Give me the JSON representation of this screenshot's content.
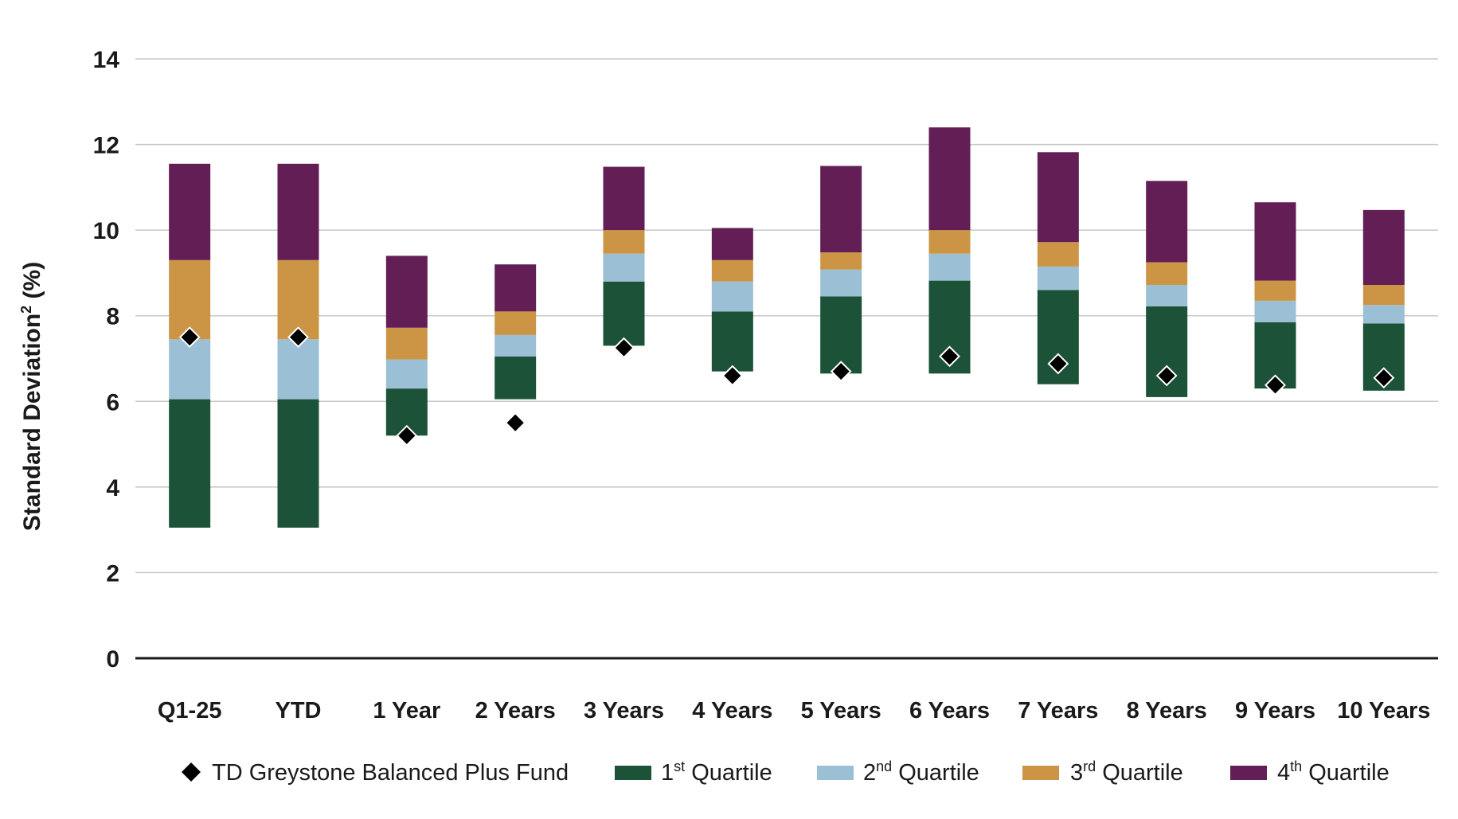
{
  "chart_data": {
    "type": "bar",
    "stacked": true,
    "floating": true,
    "ylabel_main": "Standard Deviation",
    "ylabel_sup": "2",
    "ylabel_suffix": " (%)",
    "ylim": [
      0,
      14
    ],
    "yticks": [
      "0",
      "2",
      "4",
      "6",
      "8",
      "10",
      "12",
      "14"
    ],
    "grid": true,
    "legend_position": "bottom",
    "categories": [
      "Q1-25",
      "YTD",
      "1 Year",
      "2 Years",
      "3 Years",
      "4 Years",
      "5 Years",
      "6 Years",
      "7 Years",
      "8 Years",
      "9 Years",
      "10 Years"
    ],
    "quartile_bounds": {
      "bottom": [
        3.05,
        3.05,
        5.2,
        6.05,
        7.3,
        6.7,
        6.65,
        6.65,
        6.4,
        6.1,
        6.3,
        6.25
      ],
      "q1_top": [
        6.05,
        6.05,
        6.3,
        7.05,
        8.8,
        8.1,
        8.45,
        8.82,
        8.6,
        8.22,
        7.85,
        7.82
      ],
      "q2_top": [
        7.45,
        7.45,
        6.98,
        7.55,
        9.45,
        8.8,
        9.08,
        9.45,
        9.15,
        8.72,
        8.35,
        8.25
      ],
      "q3_top": [
        9.3,
        9.3,
        7.72,
        8.1,
        10.0,
        9.3,
        9.48,
        10.0,
        9.72,
        9.25,
        8.82,
        8.72
      ],
      "q4_top": [
        11.55,
        11.55,
        9.4,
        9.2,
        11.48,
        10.05,
        11.5,
        12.4,
        11.82,
        11.15,
        10.65,
        10.47
      ]
    },
    "series": [
      {
        "name": "TD Greystone Balanced Plus Fund",
        "marker": "diamond",
        "color": "#000000",
        "values": [
          7.5,
          7.5,
          5.2,
          5.5,
          7.25,
          6.6,
          6.7,
          7.05,
          6.88,
          6.6,
          6.38,
          6.55
        ]
      },
      {
        "name_main": "1",
        "name_sup": "st",
        "name_suffix": " Quartile",
        "color": "#1c5238"
      },
      {
        "name_main": "2",
        "name_sup": "nd",
        "name_suffix": " Quartile",
        "color": "#9bbfd4"
      },
      {
        "name_main": "3",
        "name_sup": "rd",
        "name_suffix": " Quartile",
        "color": "#cc9546"
      },
      {
        "name_main": "4",
        "name_sup": "th",
        "name_suffix": " Quartile",
        "color": "#631f55"
      }
    ],
    "gridline_color": "#c8c8c8",
    "axis_color": "#1a1a1a"
  }
}
